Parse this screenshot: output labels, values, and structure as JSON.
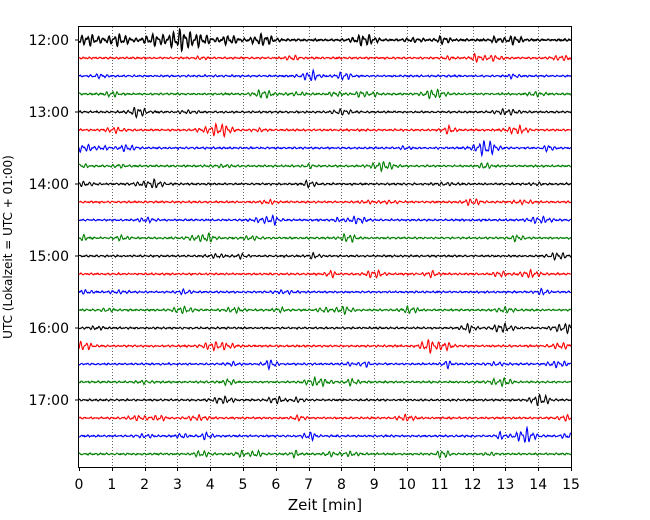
{
  "chart_data": {
    "type": "line",
    "title": "",
    "xlabel": "Zeit  [min]",
    "ylabel": "UTC (Lokalzeit = UTC + 01:00)",
    "xlim": [
      0,
      15
    ],
    "x_ticks": [
      "0",
      "1",
      "2",
      "3",
      "4",
      "5",
      "6",
      "7",
      "8",
      "9",
      "10",
      "11",
      "12",
      "13",
      "14",
      "15"
    ],
    "y_ticks": [
      "12:00",
      "13:00",
      "14:00",
      "15:00",
      "16:00",
      "17:00"
    ],
    "grid": "vertical dotted lines at each minute",
    "trace_interval_minutes": 15,
    "color_cycle": [
      "#000000",
      "#ff0000",
      "#0000ff",
      "#008000"
    ],
    "traces": [
      {
        "start": "12:00",
        "color": "#000000"
      },
      {
        "start": "12:15",
        "color": "#ff0000"
      },
      {
        "start": "12:30",
        "color": "#0000ff"
      },
      {
        "start": "12:45",
        "color": "#008000"
      },
      {
        "start": "13:00",
        "color": "#000000"
      },
      {
        "start": "13:15",
        "color": "#ff0000"
      },
      {
        "start": "13:30",
        "color": "#0000ff"
      },
      {
        "start": "13:45",
        "color": "#008000"
      },
      {
        "start": "14:00",
        "color": "#000000"
      },
      {
        "start": "14:15",
        "color": "#ff0000"
      },
      {
        "start": "14:30",
        "color": "#0000ff"
      },
      {
        "start": "14:45",
        "color": "#008000"
      },
      {
        "start": "15:00",
        "color": "#000000"
      },
      {
        "start": "15:15",
        "color": "#ff0000"
      },
      {
        "start": "15:30",
        "color": "#0000ff"
      },
      {
        "start": "15:45",
        "color": "#008000"
      },
      {
        "start": "16:00",
        "color": "#000000"
      },
      {
        "start": "16:15",
        "color": "#ff0000"
      },
      {
        "start": "16:30",
        "color": "#0000ff"
      },
      {
        "start": "16:45",
        "color": "#008000"
      },
      {
        "start": "17:00",
        "color": "#000000"
      },
      {
        "start": "17:15",
        "color": "#ff0000"
      },
      {
        "start": "17:30",
        "color": "#0000ff"
      },
      {
        "start": "17:45",
        "color": "#008000"
      }
    ]
  }
}
